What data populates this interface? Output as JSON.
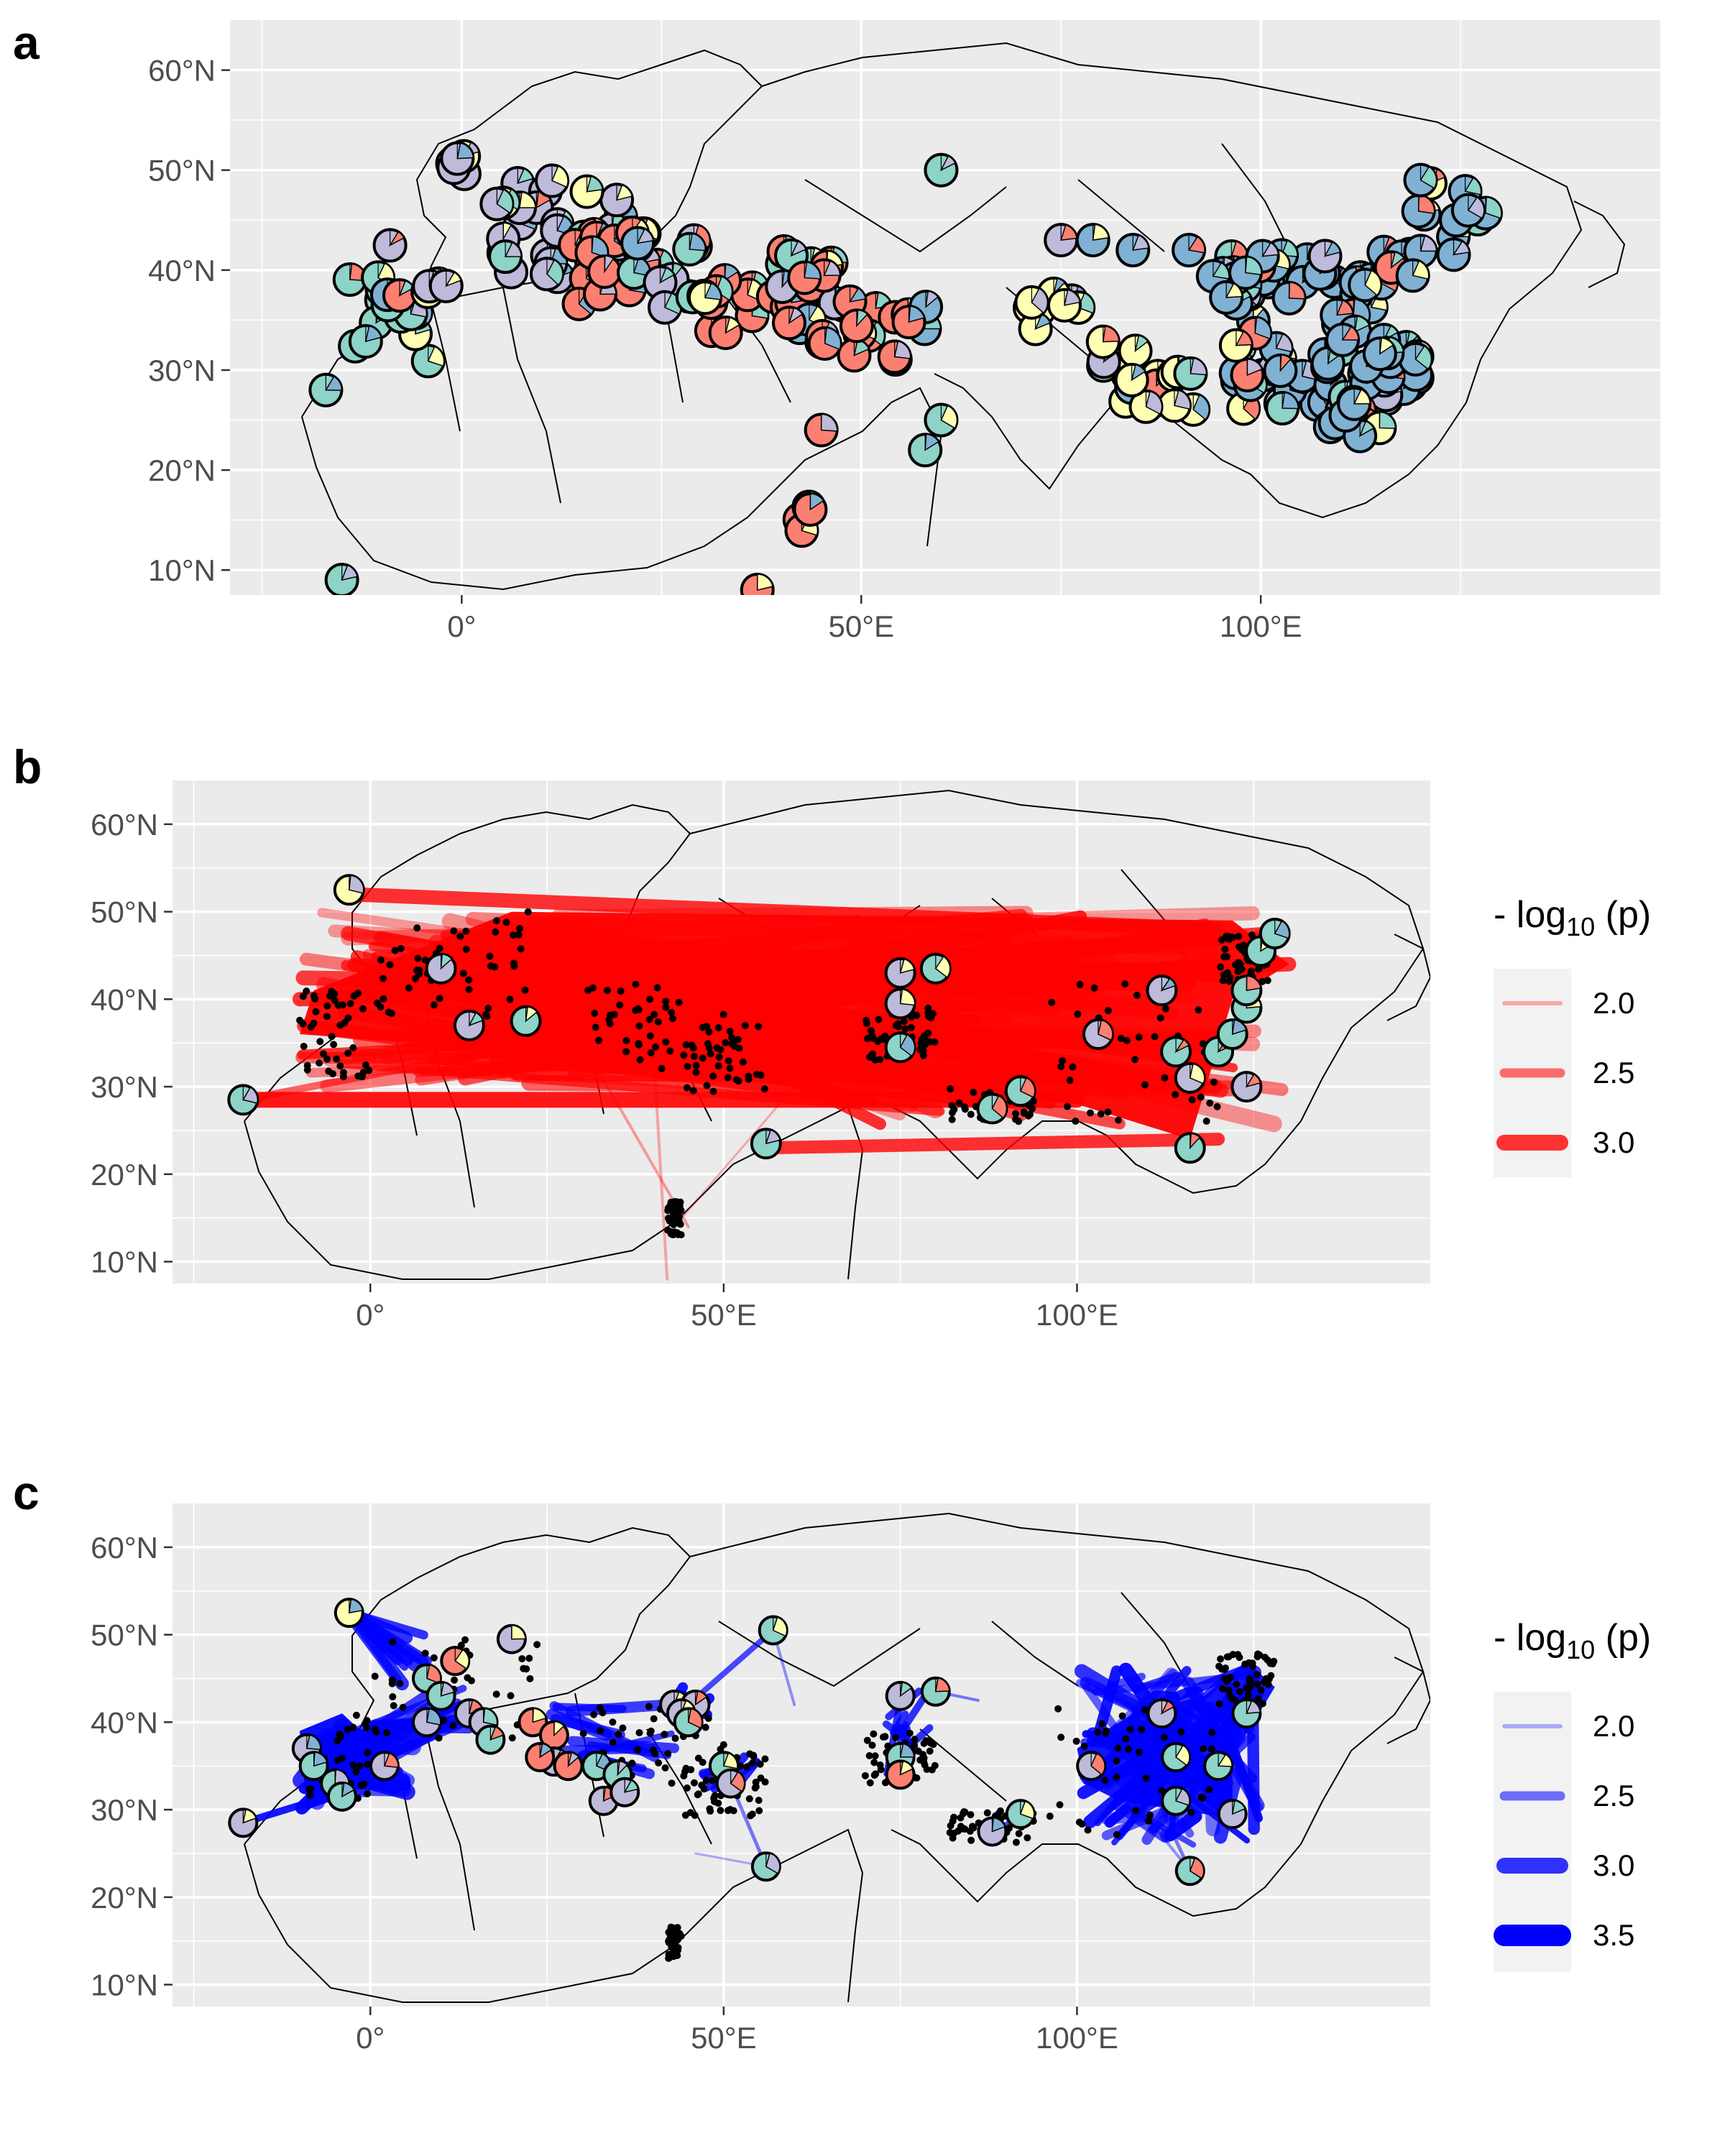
{
  "figure": {
    "panels": [
      {
        "letter": "a",
        "type": "map",
        "x_ticks": [
          "0°",
          "50°E",
          "100°E"
        ],
        "y_ticks": [
          "60°N",
          "50°N",
          "40°N",
          "30°N",
          "20°N",
          "10°N"
        ]
      },
      {
        "letter": "b",
        "type": "map",
        "x_ticks": [
          "0°",
          "50°E",
          "100°E"
        ],
        "y_ticks": [
          "60°N",
          "50°N",
          "40°N",
          "30°N",
          "20°N",
          "10°N"
        ],
        "legend": {
          "title_prefix": "- log",
          "title_sub": "10",
          "title_suffix": " (p)",
          "items": [
            "2.0",
            "2.5",
            "3.0"
          ],
          "color": "#ff0000"
        }
      },
      {
        "letter": "c",
        "type": "map",
        "x_ticks": [
          "0°",
          "50°E",
          "100°E"
        ],
        "y_ticks": [
          "60°N",
          "50°N",
          "40°N",
          "30°N",
          "20°N",
          "10°N"
        ],
        "legend": {
          "title_prefix": "- log",
          "title_sub": "10",
          "title_suffix": " (p)",
          "items": [
            "2.0",
            "2.5",
            "3.0",
            "3.5"
          ],
          "color": "#0000ff"
        }
      }
    ]
  },
  "colors": {
    "panel_bg": "#ebebeb",
    "grid": "#ffffff",
    "border": "#000000",
    "pie_blue": "#80b1d3",
    "pie_red": "#fb8072",
    "pie_purple": "#bebada",
    "pie_teal": "#8dd3c7",
    "pie_yellow": "#ffffb3",
    "link_red": "#ff0000",
    "link_blue": "#0000ff"
  },
  "chart_data": {
    "type": "map",
    "x_axis": {
      "unit": "longitude",
      "ticks": [
        0,
        50,
        100
      ]
    },
    "y_axis": {
      "unit": "latitude",
      "ticks": [
        60,
        50,
        40,
        30,
        20,
        10
      ]
    },
    "legend_b": {
      "title": "- log10 (p)",
      "values": [
        2.0,
        2.5,
        3.0
      ]
    },
    "legend_c": {
      "title": "- log10 (p)",
      "values": [
        2.0,
        2.5,
        3.0,
        3.5
      ]
    }
  }
}
